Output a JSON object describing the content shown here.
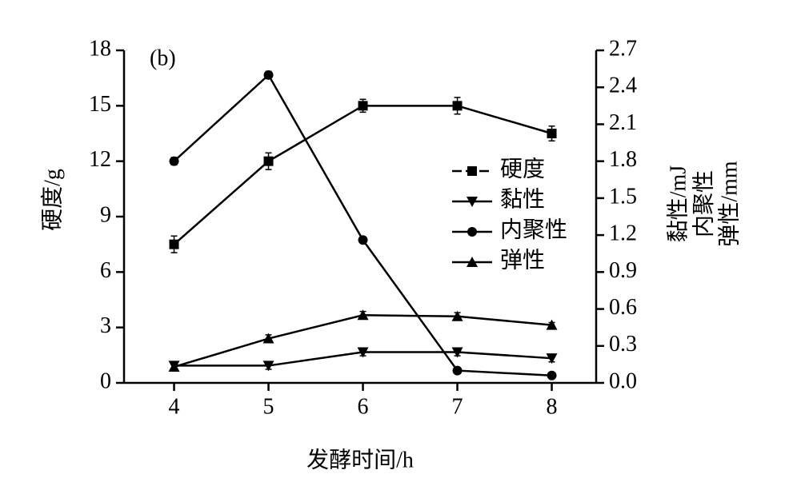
{
  "chart_data": {
    "type": "line",
    "panel_label": "(b)",
    "xlabel": "发酵时间/h",
    "ylabel": "硬度/g",
    "y2label": [
      "黏性/mJ",
      "内聚性",
      "弹性/mm"
    ],
    "x": [
      4,
      5,
      6,
      7,
      8
    ],
    "xlim": [
      3.47,
      8.47
    ],
    "xticks": [
      4,
      5,
      6,
      7,
      8
    ],
    "ylim": [
      0,
      18
    ],
    "yticks": [
      0,
      3,
      6,
      9,
      12,
      15,
      18
    ],
    "y2lim": [
      0,
      2.7
    ],
    "y2ticks": [
      {
        "value": 0,
        "label": "0.0"
      },
      0.3,
      0.6,
      0.9,
      1.2,
      1.5,
      1.8,
      2.1,
      2.4,
      2.7
    ],
    "legend": "center-right",
    "series": [
      {
        "name": "硬度",
        "color": "#000000",
        "marker": "square",
        "axis": "y",
        "values": [
          7.5,
          12.0,
          15.0,
          15.0,
          13.5
        ],
        "errors": [
          0.45,
          0.45,
          0.35,
          0.45,
          0.4
        ]
      },
      {
        "name": "黏性",
        "color": "#000000",
        "marker": "triangle-down",
        "axis": "y2",
        "values": [
          0.14,
          0.14,
          0.25,
          0.25,
          0.2
        ],
        "errors": [
          0.03,
          0.03,
          0.03,
          0.03,
          0.03
        ]
      },
      {
        "name": "内聚性",
        "color": "#000000",
        "marker": "circle",
        "axis": "y2",
        "values": [
          1.8,
          2.5,
          1.16,
          0.1,
          0.06
        ],
        "errors": [
          0.03,
          0.03,
          0.02,
          0.02,
          0.02
        ]
      },
      {
        "name": "弹性",
        "color": "#000000",
        "marker": "triangle-up",
        "axis": "y2",
        "values": [
          0.13,
          0.36,
          0.55,
          0.54,
          0.47
        ],
        "errors": [
          0.03,
          0.03,
          0.03,
          0.03,
          0.02
        ]
      }
    ]
  }
}
